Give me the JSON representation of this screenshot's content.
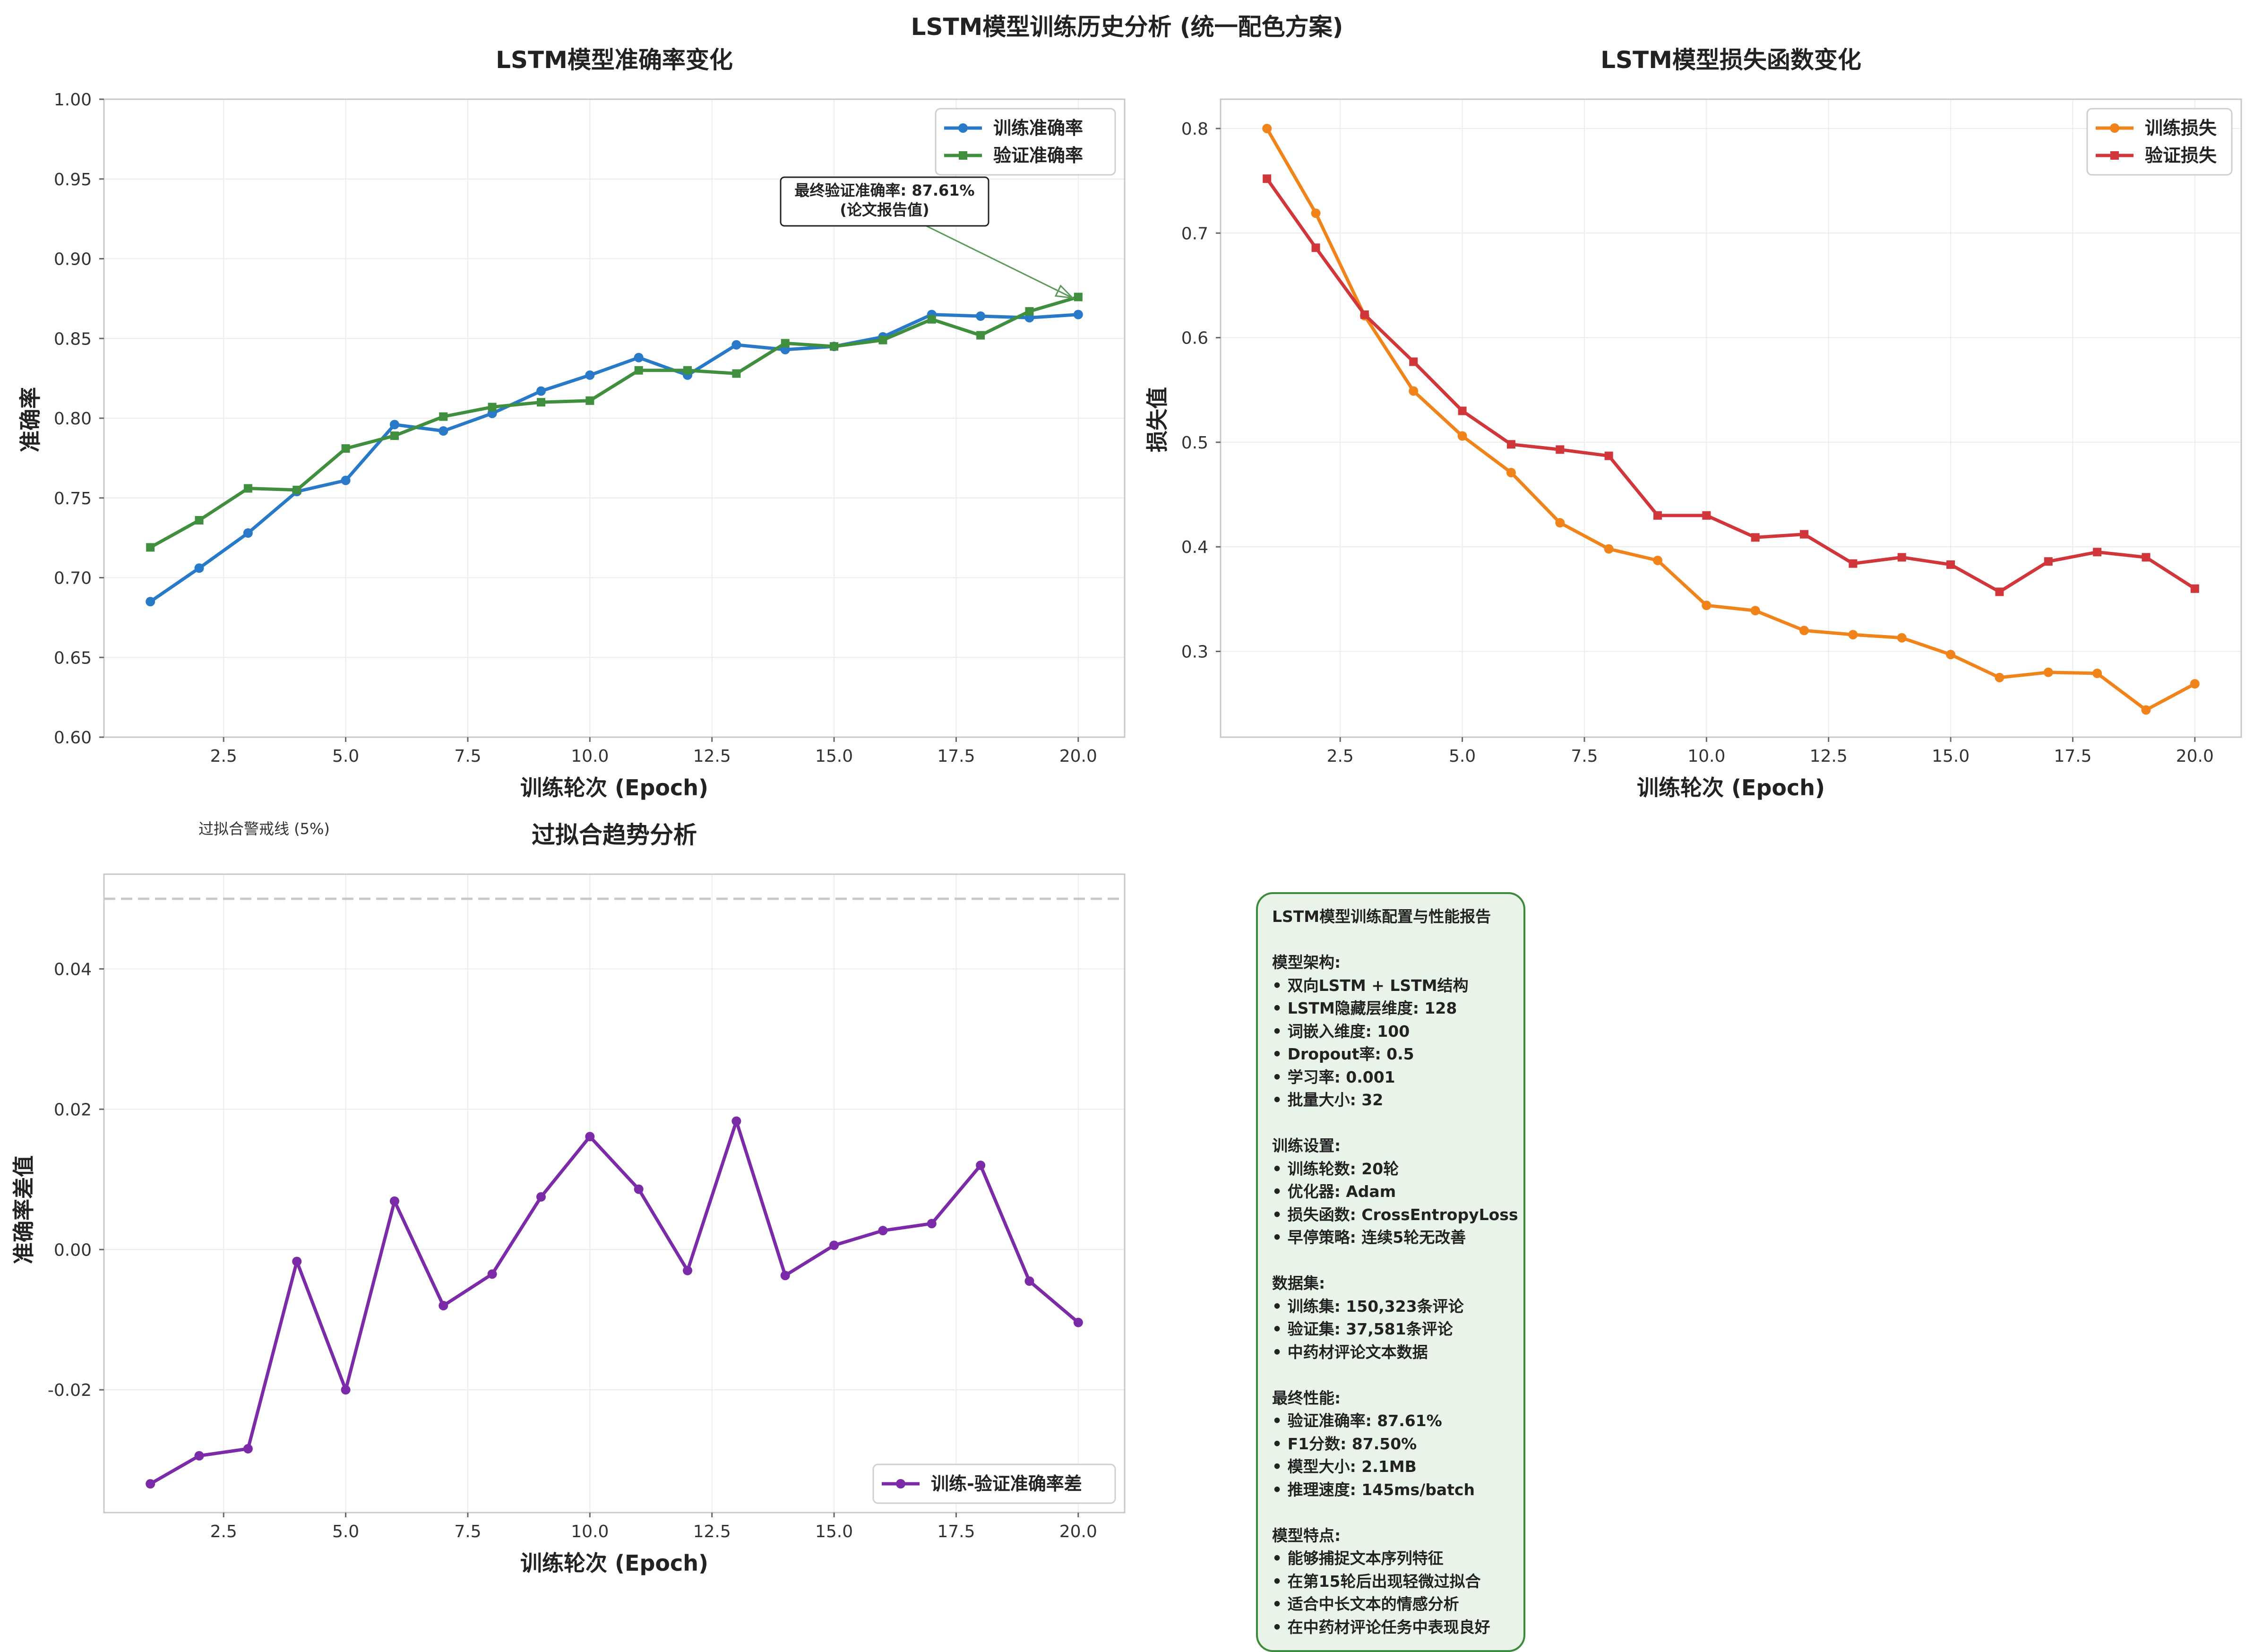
{
  "suptitle": "LSTM模型训练历史分析 (统一配色方案)",
  "colors": {
    "train_acc": "#2979c9",
    "val_acc": "#3f8f3f",
    "train_loss": "#f0841a",
    "val_loss": "#d0363a",
    "diff": "#7b2aa8",
    "annotation_arrow": "#5a9a5a",
    "info_bg": "#e8f4e8",
    "info_border": "#3a8a3a"
  },
  "chart_data": [
    {
      "type": "line",
      "title": "LSTM模型准确率变化",
      "xlabel": "训练轮次 (Epoch)",
      "ylabel": "准确率",
      "x": [
        1,
        2,
        3,
        4,
        5,
        6,
        7,
        8,
        9,
        10,
        11,
        12,
        13,
        14,
        15,
        16,
        17,
        18,
        19,
        20
      ],
      "xticks": [
        "2.5",
        "5.0",
        "7.5",
        "10.0",
        "12.5",
        "15.0",
        "17.5",
        "20.0"
      ],
      "yticks": [
        "0.60",
        "0.65",
        "0.70",
        "0.75",
        "0.80",
        "0.85",
        "0.90",
        "0.95",
        "1.00"
      ],
      "xlim": [
        0.05,
        20.95
      ],
      "ylim": [
        0.6,
        1.0
      ],
      "legend_position": "top-right",
      "series": [
        {
          "name": "训练准确率",
          "marker": "circle",
          "values": [
            0.685,
            0.706,
            0.728,
            0.754,
            0.761,
            0.796,
            0.792,
            0.803,
            0.817,
            0.827,
            0.838,
            0.827,
            0.846,
            0.843,
            0.845,
            0.851,
            0.865,
            0.864,
            0.863,
            0.865
          ]
        },
        {
          "name": "验证准确率",
          "marker": "square",
          "values": [
            0.719,
            0.736,
            0.756,
            0.755,
            0.781,
            0.789,
            0.801,
            0.807,
            0.81,
            0.811,
            0.83,
            0.83,
            0.828,
            0.847,
            0.845,
            0.849,
            0.862,
            0.852,
            0.867,
            0.876
          ]
        }
      ],
      "annotation": {
        "line1": "最终验证准确率: 87.61%",
        "line2": "(论文报告值)",
        "target_x": 20,
        "target_y": 0.876
      }
    },
    {
      "type": "line",
      "title": "LSTM模型损失函数变化",
      "xlabel": "训练轮次 (Epoch)",
      "ylabel": "损失值",
      "x": [
        1,
        2,
        3,
        4,
        5,
        6,
        7,
        8,
        9,
        10,
        11,
        12,
        13,
        14,
        15,
        16,
        17,
        18,
        19,
        20
      ],
      "xticks": [
        "2.5",
        "5.0",
        "7.5",
        "10.0",
        "12.5",
        "15.0",
        "17.5",
        "20.0"
      ],
      "yticks": [
        "0.3",
        "0.4",
        "0.5",
        "0.6",
        "0.7",
        "0.8"
      ],
      "xlim": [
        0.05,
        20.95
      ],
      "ylim": [
        0.218,
        0.828
      ],
      "legend_position": "top-right",
      "series": [
        {
          "name": "训练损失",
          "marker": "circle",
          "values": [
            0.8,
            0.719,
            0.621,
            0.549,
            0.506,
            0.471,
            0.423,
            0.398,
            0.387,
            0.344,
            0.339,
            0.32,
            0.316,
            0.313,
            0.297,
            0.275,
            0.28,
            0.279,
            0.244,
            0.269
          ]
        },
        {
          "name": "验证损失",
          "marker": "square",
          "values": [
            0.752,
            0.686,
            0.622,
            0.577,
            0.53,
            0.498,
            0.493,
            0.487,
            0.43,
            0.43,
            0.409,
            0.412,
            0.384,
            0.39,
            0.383,
            0.357,
            0.386,
            0.395,
            0.39,
            0.36
          ]
        }
      ]
    },
    {
      "type": "line",
      "title": "过拟合趋势分析",
      "xlabel": "训练轮次 (Epoch)",
      "ylabel": "准确率差值",
      "x": [
        1,
        2,
        3,
        4,
        5,
        6,
        7,
        8,
        9,
        10,
        11,
        12,
        13,
        14,
        15,
        16,
        17,
        18,
        19,
        20
      ],
      "xticks": [
        "2.5",
        "5.0",
        "7.5",
        "10.0",
        "12.5",
        "15.0",
        "17.5",
        "20.0"
      ],
      "yticks": [
        "-0.02",
        "0.00",
        "0.02",
        "0.04"
      ],
      "xlim": [
        0.05,
        20.95
      ],
      "ylim": [
        -0.0375,
        0.0535
      ],
      "legend_position": "bottom-right",
      "threshold": {
        "value": 0.05,
        "label": "过拟合警戒线 (5%)"
      },
      "series": [
        {
          "name": "训练-验证准确率差",
          "marker": "circle",
          "values": [
            -0.0334,
            -0.0294,
            -0.0284,
            -0.0017,
            -0.02,
            0.0069,
            -0.008,
            -0.0035,
            0.0075,
            0.0161,
            0.0086,
            -0.003,
            0.0183,
            -0.0037,
            0.0006,
            0.0027,
            0.0037,
            0.012,
            -0.0045,
            -0.0104
          ]
        }
      ]
    }
  ],
  "info_box": {
    "lines": [
      "LSTM模型训练配置与性能报告",
      "",
      "模型架构:",
      "• 双向LSTM + LSTM结构",
      "• LSTM隐藏层维度: 128",
      "• 词嵌入维度: 100",
      "• Dropout率: 0.5",
      "• 学习率: 0.001",
      "• 批量大小: 32",
      "",
      "训练设置:",
      "• 训练轮数: 20轮",
      "• 优化器: Adam",
      "• 损失函数: CrossEntropyLoss",
      "• 早停策略: 连续5轮无改善",
      "",
      "数据集:",
      "• 训练集: 150,323条评论",
      "• 验证集: 37,581条评论",
      "• 中药材评论文本数据",
      "",
      "最终性能:",
      "• 验证准确率: 87.61%",
      "• F1分数: 87.50%",
      "• 模型大小: 2.1MB",
      "• 推理速度: 145ms/batch",
      "",
      "模型特点:",
      "• 能够捕捉文本序列特征",
      "• 在第15轮后出现轻微过拟合",
      "• 适合中长文本的情感分析",
      "• 在中药材评论任务中表现良好"
    ]
  }
}
